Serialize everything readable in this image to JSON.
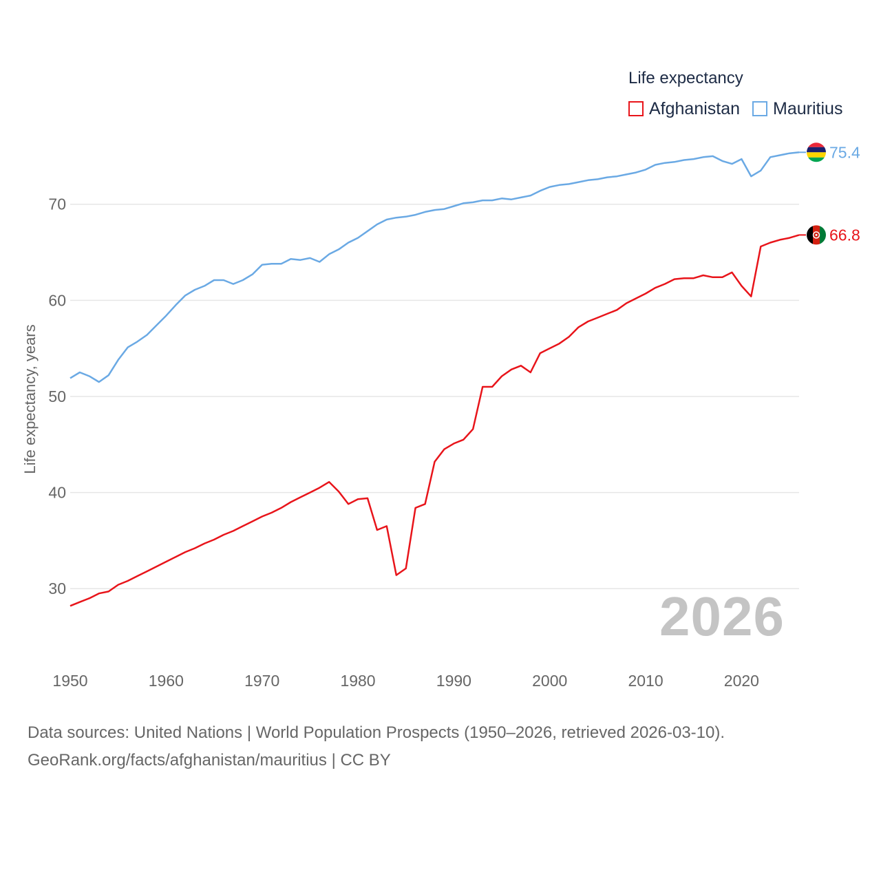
{
  "legend": {
    "title": "Life expectancy"
  },
  "colors": {
    "afghanistan": "#e8141a",
    "mauritius": "#6aa9e4",
    "grid": "#e6e6e6",
    "axis_text": "#666666"
  },
  "current_year": "2026",
  "source": {
    "line1": "Data sources: United Nations | World Population Prospects (1950–2026, retrieved 2026-03-10).",
    "line2": "GeoRank.org/facts/afghanistan/mauritius | CC BY"
  },
  "chart_data": {
    "type": "line",
    "ylabel": "Life expectancy, years",
    "xlabel": "",
    "xlim": [
      1950,
      2026
    ],
    "ylim": [
      25,
      78
    ],
    "xticks": [
      1950,
      1960,
      1970,
      1980,
      1990,
      2000,
      2010,
      2020
    ],
    "yticks": [
      30,
      40,
      50,
      60,
      70
    ],
    "grid": true,
    "x": [
      1950,
      1951,
      1952,
      1953,
      1954,
      1955,
      1956,
      1957,
      1958,
      1959,
      1960,
      1961,
      1962,
      1963,
      1964,
      1965,
      1966,
      1967,
      1968,
      1969,
      1970,
      1971,
      1972,
      1973,
      1974,
      1975,
      1976,
      1977,
      1978,
      1979,
      1980,
      1981,
      1982,
      1983,
      1984,
      1985,
      1986,
      1987,
      1988,
      1989,
      1990,
      1991,
      1992,
      1993,
      1994,
      1995,
      1996,
      1997,
      1998,
      1999,
      2000,
      2001,
      2002,
      2003,
      2004,
      2005,
      2006,
      2007,
      2008,
      2009,
      2010,
      2011,
      2012,
      2013,
      2014,
      2015,
      2016,
      2017,
      2018,
      2019,
      2020,
      2021,
      2022,
      2023,
      2024,
      2025,
      2026
    ],
    "series": [
      {
        "name": "Afghanistan",
        "color": "#e8141a",
        "end_label": "66.8",
        "values": [
          28.2,
          28.6,
          29.0,
          29.5,
          29.7,
          30.4,
          30.8,
          31.3,
          31.8,
          32.3,
          32.8,
          33.3,
          33.8,
          34.2,
          34.7,
          35.1,
          35.6,
          36.0,
          36.5,
          37.0,
          37.5,
          37.9,
          38.4,
          39.0,
          39.5,
          40.0,
          40.5,
          41.1,
          40.1,
          38.8,
          39.3,
          39.4,
          36.1,
          36.5,
          31.4,
          32.1,
          38.4,
          38.8,
          43.2,
          44.5,
          45.1,
          45.5,
          46.6,
          51.0,
          51.0,
          52.1,
          52.8,
          53.2,
          52.5,
          54.5,
          55.0,
          55.5,
          56.2,
          57.2,
          57.8,
          58.2,
          58.6,
          59.0,
          59.7,
          60.2,
          60.7,
          61.3,
          61.7,
          62.2,
          62.3,
          62.3,
          62.6,
          62.4,
          62.4,
          62.9,
          61.5,
          60.4,
          65.6,
          66.0,
          66.3,
          66.5,
          66.8
        ]
      },
      {
        "name": "Mauritius",
        "color": "#6aa9e4",
        "end_label": "75.4",
        "values": [
          51.9,
          52.5,
          52.1,
          51.5,
          52.2,
          53.8,
          55.1,
          55.7,
          56.4,
          57.4,
          58.4,
          59.5,
          60.5,
          61.1,
          61.5,
          62.1,
          62.1,
          61.7,
          62.1,
          62.7,
          63.7,
          63.8,
          63.8,
          64.3,
          64.2,
          64.4,
          64.0,
          64.8,
          65.3,
          66.0,
          66.5,
          67.2,
          67.9,
          68.4,
          68.6,
          68.7,
          68.9,
          69.2,
          69.4,
          69.5,
          69.8,
          70.1,
          70.2,
          70.4,
          70.4,
          70.6,
          70.5,
          70.7,
          70.9,
          71.4,
          71.8,
          72.0,
          72.1,
          72.3,
          72.5,
          72.6,
          72.8,
          72.9,
          73.1,
          73.3,
          73.6,
          74.1,
          74.3,
          74.4,
          74.6,
          74.7,
          74.9,
          75.0,
          74.5,
          74.2,
          74.7,
          72.9,
          73.5,
          74.9,
          75.1,
          75.3,
          75.4
        ]
      }
    ]
  }
}
